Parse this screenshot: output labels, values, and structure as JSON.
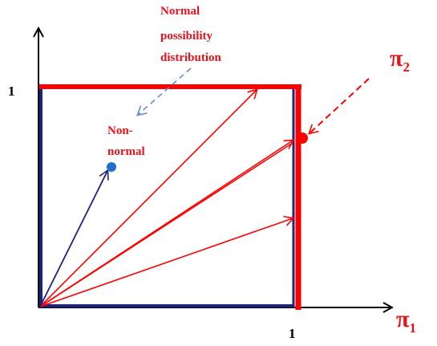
{
  "labels": {
    "y_tick": "1",
    "x_tick": "1",
    "pi2": "π",
    "pi2_sub": "2",
    "pi1": "π",
    "pi1_sub": "1",
    "normal_line1": "Normal",
    "normal_line2": "possibility",
    "normal_line3": "distribution",
    "nonnormal_line1": "Non-",
    "nonnormal_line2": "normal"
  },
  "colors": {
    "red": "#ff0000",
    "navy": "#1a237e",
    "black": "#000000",
    "dashed_blue": "#5b8fd6",
    "blue_dot": "#1f6fd1",
    "label_red": "#e8121b"
  }
}
